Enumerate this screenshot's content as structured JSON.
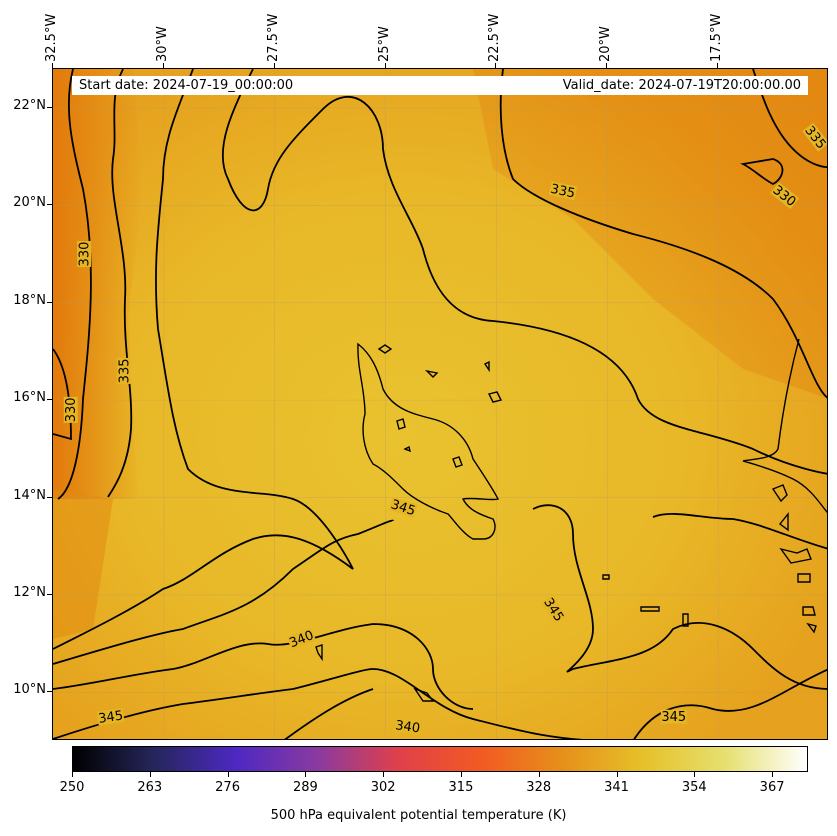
{
  "map": {
    "projection": "PlateCarree",
    "lon_range": [
      -32.5,
      -15.0
    ],
    "lat_range": [
      9.0,
      22.8
    ],
    "field": "500 hPa equivalent potential temperature",
    "units": "K",
    "contour_levels": [
      330,
      335,
      340,
      345
    ],
    "colormap": "CMRmap",
    "colors": {
      "contour": "#000000",
      "field_low": "#e2790a",
      "field_high": "#e9c22e",
      "gridline": "#b89a5a"
    }
  },
  "info": {
    "start_date": "Start date: 2024-07-19_00:00:00",
    "valid_date": "Valid_date: 2024-07-19T20:00:00.00"
  },
  "lon_ticks": [
    "32.5°W",
    "30°W",
    "27.5°W",
    "25°W",
    "22.5°W",
    "20°W",
    "17.5°W"
  ],
  "lat_ticks": [
    "22°N",
    "20°N",
    "18°N",
    "16°N",
    "14°N",
    "12°N",
    "10°N"
  ],
  "contour_labels": [
    {
      "text": "330",
      "lon": -31.8,
      "lat": 19.0,
      "rot": -90
    },
    {
      "text": "330",
      "lon": -32.1,
      "lat": 15.8,
      "rot": -90
    },
    {
      "text": "335",
      "lon": -30.9,
      "lat": 16.6,
      "rot": -90
    },
    {
      "text": "335",
      "lon": -21.0,
      "lat": 20.3,
      "rot": 12
    },
    {
      "text": "335",
      "lon": -15.3,
      "lat": 21.4,
      "rot": 52
    },
    {
      "text": "330",
      "lon": -16.0,
      "lat": 20.2,
      "rot": 38
    },
    {
      "text": "345",
      "lon": -24.6,
      "lat": 13.8,
      "rot": 18
    },
    {
      "text": "345",
      "lon": -21.2,
      "lat": 11.7,
      "rot": 58
    },
    {
      "text": "340",
      "lon": -26.9,
      "lat": 11.1,
      "rot": -22
    },
    {
      "text": "345",
      "lon": -31.2,
      "lat": 9.5,
      "rot": -8
    },
    {
      "text": "340",
      "lon": -24.5,
      "lat": 9.3,
      "rot": 8
    },
    {
      "text": "345",
      "lon": -18.5,
      "lat": 9.5,
      "rot": 0
    }
  ],
  "colorbar": {
    "ticks": [
      "250",
      "263",
      "276",
      "289",
      "302",
      "315",
      "328",
      "341",
      "354",
      "367"
    ],
    "range": [
      250,
      373
    ],
    "label": "500 hPa equivalent potential temperature (K)",
    "stops": [
      "#000000",
      "#26265c",
      "#4d28c2",
      "#8a3aa0",
      "#e0404a",
      "#f25a22",
      "#e6901a",
      "#e6c12a",
      "#e6e070",
      "#ffffff"
    ]
  }
}
